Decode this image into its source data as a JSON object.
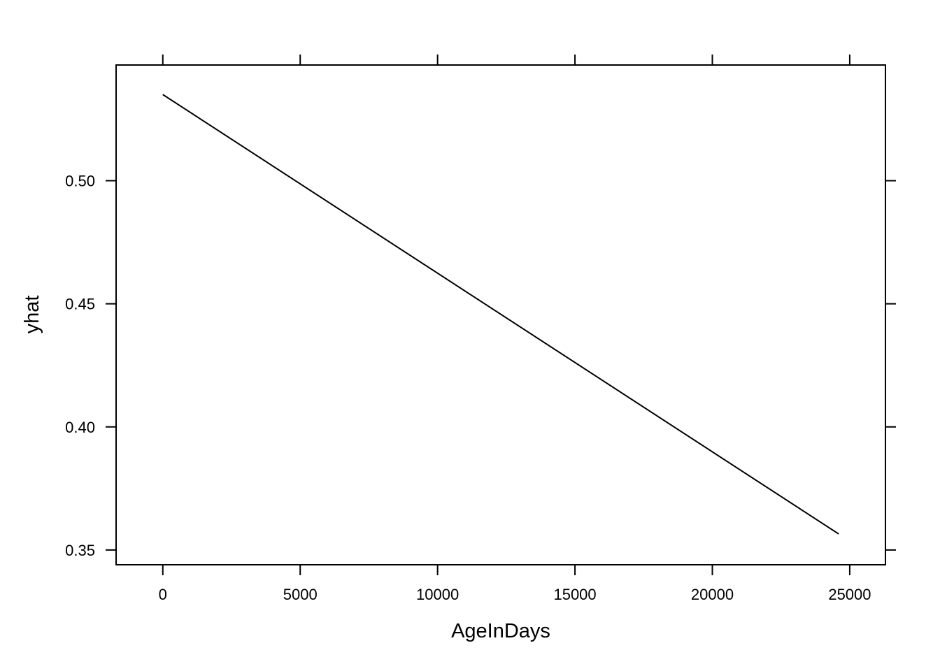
{
  "chart_data": {
    "type": "line",
    "title": "",
    "xlabel": "AgeInDays",
    "ylabel": "yhat",
    "xlim": [
      -1700,
      26300
    ],
    "ylim": [
      0.344,
      0.547
    ],
    "x_ticks": [
      0,
      5000,
      10000,
      15000,
      20000,
      25000
    ],
    "x_tick_labels": [
      "0",
      "5000",
      "10000",
      "15000",
      "20000",
      "25000"
    ],
    "y_ticks": [
      0.35,
      0.4,
      0.45,
      0.5
    ],
    "y_tick_labels": [
      "0.35",
      "0.40",
      "0.45",
      "0.50"
    ],
    "grid": false,
    "legend": "none",
    "series": [
      {
        "x": [
          0,
          24600
        ],
        "y": [
          0.535,
          0.3565
        ]
      }
    ],
    "colors": {
      "line": "#000000",
      "frame": "#000000",
      "background": "#ffffff"
    }
  }
}
